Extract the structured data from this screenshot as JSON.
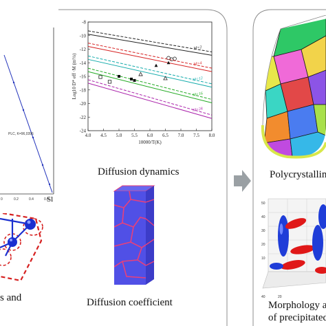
{
  "captions": {
    "diffusion_dynamics": "Diffusion dynamics",
    "diffusion_coefficient": "Diffusion coefficient",
    "left_fragment": "s and",
    "polycrystalline": "Polycrystallin",
    "morphology_line1": "Morphology a",
    "morphology_line2": "of precipitated"
  },
  "left_plot": {
    "annotation": "PLC, K=96,0396",
    "x_tick_labels": [
      "0",
      "0.2",
      "0.4",
      "0.6"
    ],
    "x_label_fragment": "Sl"
  },
  "chart_data": {
    "type": "line",
    "title": "",
    "xlabel": "10000/T(K)",
    "ylabel": "Log10 D* eff ·M (m²/s)",
    "xlim": [
      4.0,
      8.0
    ],
    "ylim": [
      -24,
      -8
    ],
    "x_ticks": [
      "4.0",
      "4.5",
      "5.0",
      "5.5",
      "6.0",
      "6.5",
      "7.0",
      "7.5",
      "8.0"
    ],
    "y_ticks": [
      "-8",
      "-10",
      "-12",
      "-14",
      "-16",
      "-18",
      "-20",
      "-22",
      "-24"
    ],
    "series": [
      {
        "name": "M=2",
        "color": "#222222",
        "solid": [
          [
            4.0,
            -9.8
          ],
          [
            8.0,
            -12.9
          ]
        ],
        "dashed": [
          [
            4.0,
            -9.3
          ],
          [
            8.0,
            -12.4
          ]
        ],
        "markers": [
          [
            6.6,
            -13.3
          ],
          [
            6.7,
            -13.5
          ],
          [
            6.8,
            -13.4
          ]
        ],
        "marker": "open-circle"
      },
      {
        "name": "M=4",
        "color": "#d62020",
        "solid": [
          [
            4.0,
            -11.6
          ],
          [
            8.0,
            -15.3
          ]
        ],
        "dashed": [
          [
            4.0,
            -11.1
          ],
          [
            8.0,
            -14.8
          ]
        ],
        "markers": [
          [
            6.2,
            -14.4
          ],
          [
            6.6,
            -14.0
          ]
        ],
        "marker": "filled-triangle"
      },
      {
        "name": "M=12",
        "color": "#11aaaa",
        "solid": [
          [
            4.0,
            -13.5
          ],
          [
            8.0,
            -17.6
          ]
        ],
        "dashed": [
          [
            4.0,
            -13.0
          ],
          [
            8.0,
            -17.1
          ]
        ],
        "markers": [
          [
            5.7,
            -15.7
          ],
          [
            6.5,
            -16.3
          ]
        ],
        "marker": "open-triangle"
      },
      {
        "name": "M=16",
        "color": "#22aa22",
        "solid": [
          [
            4.0,
            -15.3
          ],
          [
            8.0,
            -19.9
          ]
        ],
        "dashed": [
          [
            4.0,
            -14.8
          ],
          [
            8.0,
            -19.4
          ]
        ],
        "markers": [
          [
            5.0,
            -16.0
          ],
          [
            5.4,
            -16.4
          ],
          [
            5.5,
            -16.6
          ]
        ],
        "marker": "filled-square"
      },
      {
        "name": "M=24",
        "color": "#aa22aa",
        "solid": [
          [
            4.0,
            -17.0
          ],
          [
            8.0,
            -22.2
          ]
        ],
        "dashed": [
          [
            4.0,
            -16.5
          ],
          [
            8.0,
            -21.7
          ]
        ],
        "markers": [
          [
            4.4,
            -16.1
          ],
          [
            4.7,
            -16.8
          ]
        ],
        "marker": "open-square"
      }
    ]
  },
  "colors": {
    "arrow": "#9aa0a4",
    "panel_border": "#8c8c8c",
    "grain_blue": "#5050e6",
    "grain_boundary": "#e8407a"
  }
}
